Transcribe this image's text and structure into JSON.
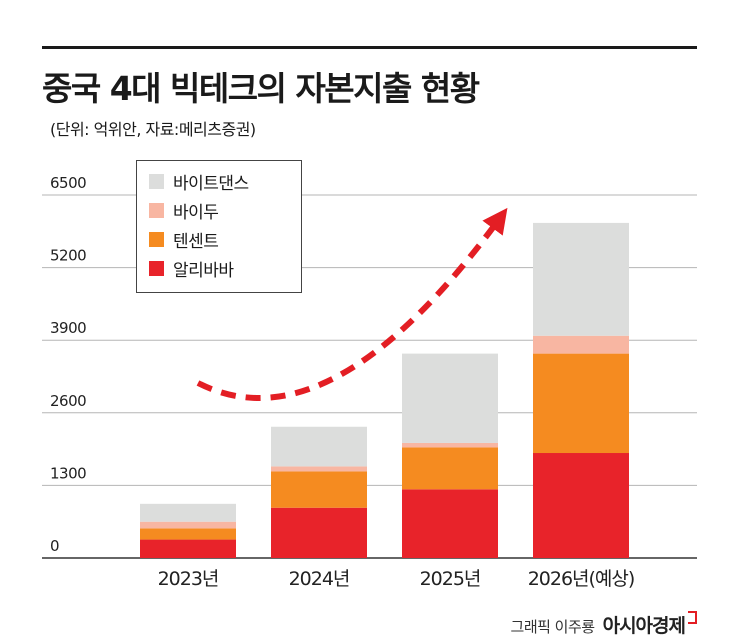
{
  "header": {
    "title": "중국 4대 빅테크의 자본지출 현황",
    "subtitle": "(단위: 억위안, 자료:메리츠증권)"
  },
  "chart_data": {
    "type": "bar",
    "stacked": true,
    "categories": [
      "2023년",
      "2024년",
      "2025년",
      "2026년(예상)"
    ],
    "series": [
      {
        "name": "알리바바",
        "color": "#e8232a",
        "values": [
          330,
          900,
          1230,
          1880
        ]
      },
      {
        "name": "텐센트",
        "color": "#f58b20",
        "values": [
          200,
          650,
          750,
          1780
        ]
      },
      {
        "name": "바이두",
        "color": "#f8b6a2",
        "values": [
          120,
          90,
          80,
          320
        ]
      },
      {
        "name": "바이트댄스",
        "color": "#dcdddc",
        "values": [
          320,
          710,
          1600,
          2020
        ]
      }
    ],
    "yticks": [
      0,
      1300,
      2600,
      3900,
      5200,
      6500
    ],
    "ylim": [
      0,
      6500
    ],
    "grid": true,
    "legend": {
      "position": "top-left",
      "order": [
        "바이트댄스",
        "바이두",
        "텐센트",
        "알리바바"
      ]
    },
    "annotation": "red dashed upward trend arrow"
  },
  "credit": {
    "text": "그래픽 이주룡",
    "brand": "아시아경제"
  }
}
